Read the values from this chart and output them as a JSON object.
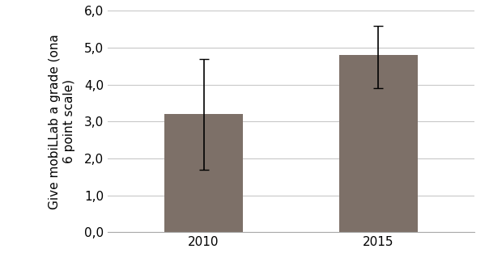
{
  "categories": [
    "2010",
    "2015"
  ],
  "values": [
    3.2,
    4.8
  ],
  "error_neg": [
    1.5,
    0.9
  ],
  "error_pos": [
    1.5,
    0.8
  ],
  "bar_color": "#7d7068",
  "bar_width": 0.45,
  "ylabel_line1": "Give mobiLLab a grade (ona",
  "ylabel_line2": "6 point scale)",
  "ylim": [
    0.0,
    6.0
  ],
  "yticks": [
    0.0,
    1.0,
    2.0,
    3.0,
    4.0,
    5.0,
    6.0
  ],
  "ytick_labels": [
    "0,0",
    "1,0",
    "2,0",
    "3,0",
    "4,0",
    "5,0",
    "6,0"
  ],
  "background_color": "#ffffff",
  "grid_color": "#c8c8c8",
  "errorbar_color": "#000000",
  "errorbar_capsize": 4,
  "errorbar_linewidth": 1.2,
  "tick_fontsize": 11,
  "ylabel_fontsize": 11
}
